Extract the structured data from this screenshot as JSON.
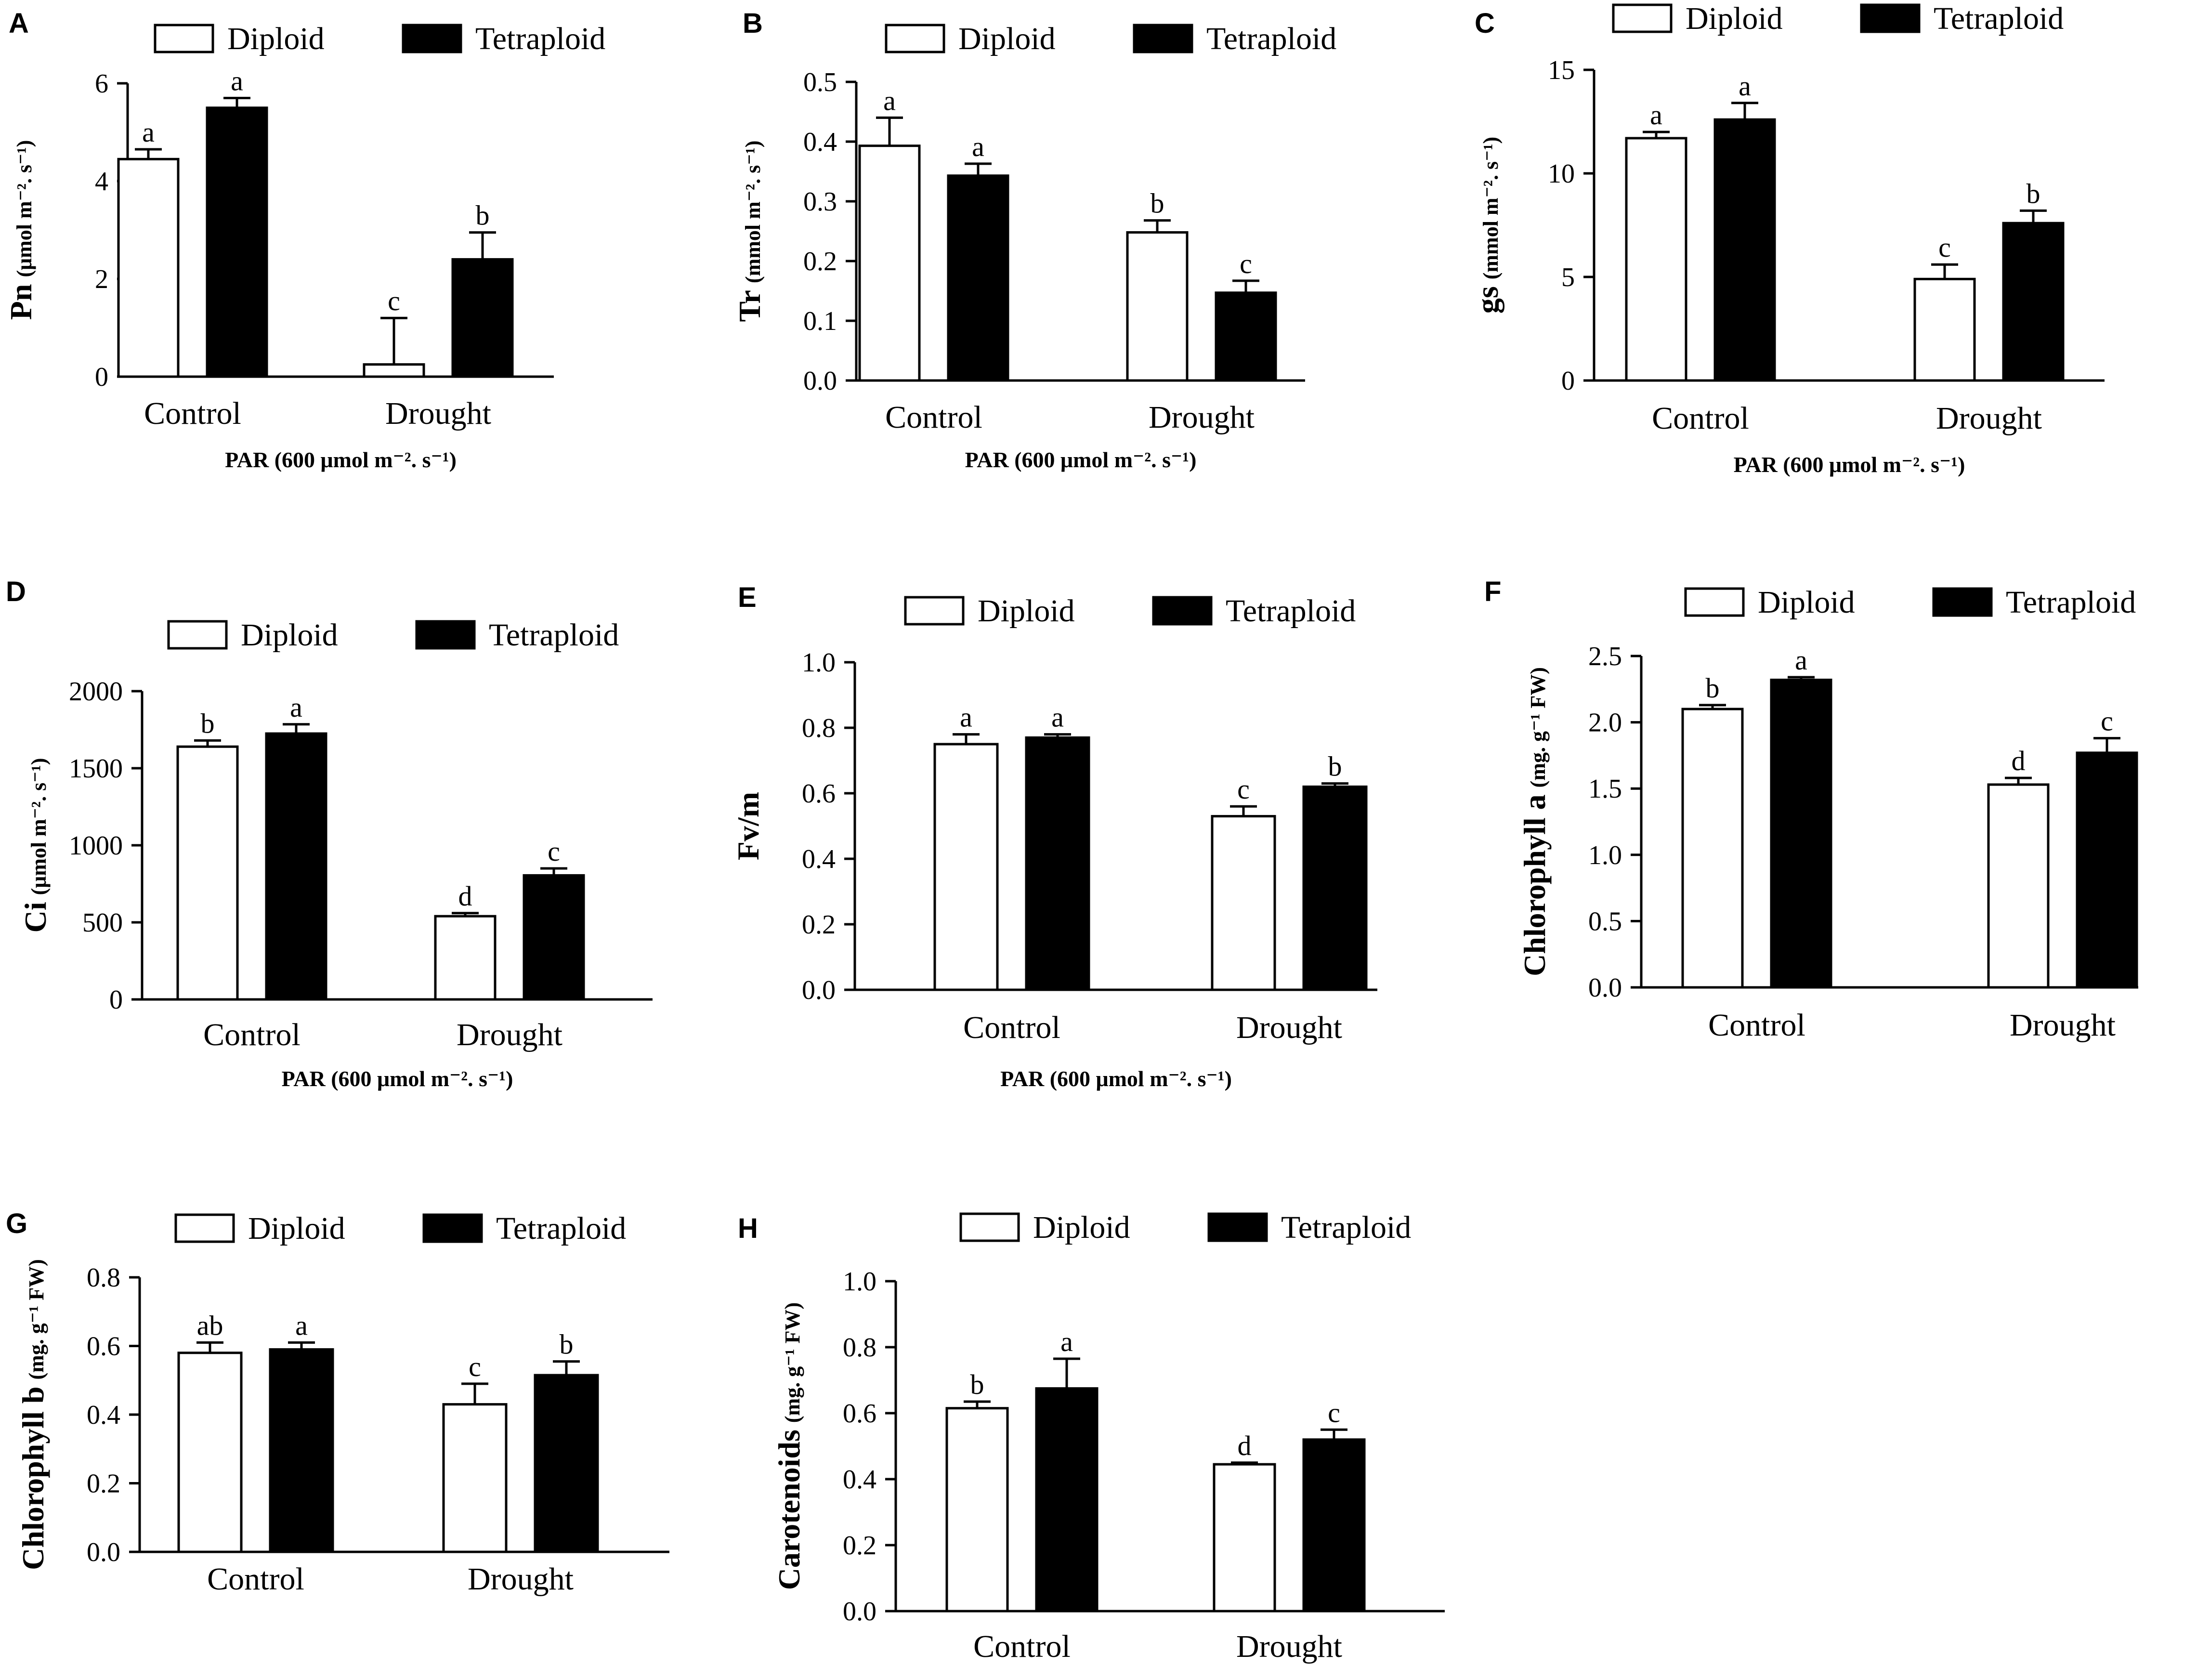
{
  "chart_data": [
    {
      "panel": "A",
      "type": "bar",
      "categories": [
        "Control",
        "Drought"
      ],
      "series": [
        {
          "name": "Diploid",
          "values": [
            4.45,
            0.25
          ],
          "errors": [
            0.2,
            0.95
          ]
        },
        {
          "name": "Tetraploid",
          "values": [
            5.5,
            2.4
          ],
          "errors": [
            0.2,
            0.55
          ]
        }
      ],
      "sig_labels": [
        [
          "a",
          "c"
        ],
        [
          "a",
          "b"
        ]
      ],
      "ylabel": "Pn",
      "ylabel_unit": "(μmol m⁻². s⁻¹)",
      "xlabel": "PAR (600 μmol m⁻². s⁻¹)",
      "ylim": [
        0,
        6
      ],
      "yticks": [
        "0",
        "2",
        "4",
        "6"
      ],
      "legend": [
        "Diploid",
        "Tetraploid"
      ]
    },
    {
      "panel": "B",
      "type": "bar",
      "categories": [
        "Control",
        "Drought"
      ],
      "series": [
        {
          "name": "Diploid",
          "values": [
            0.393,
            0.248
          ],
          "errors": [
            0.047,
            0.02
          ]
        },
        {
          "name": "Tetraploid",
          "values": [
            0.343,
            0.147
          ],
          "errors": [
            0.02,
            0.02
          ]
        }
      ],
      "sig_labels": [
        [
          "a",
          "b"
        ],
        [
          "a",
          "c"
        ]
      ],
      "ylabel": "Tr",
      "ylabel_unit": "(mmol m⁻². s⁻¹)",
      "xlabel": "PAR (600 μmol m⁻². s⁻¹)",
      "ylim": [
        0,
        0.5
      ],
      "yticks": [
        "0.0",
        "0.1",
        "0.2",
        "0.3",
        "0.4",
        "0.5"
      ],
      "legend": [
        "Diploid",
        "Tetraploid"
      ]
    },
    {
      "panel": "C",
      "type": "bar",
      "categories": [
        "Control",
        "Drought"
      ],
      "series": [
        {
          "name": "Diploid",
          "values": [
            11.7,
            4.9
          ],
          "errors": [
            0.3,
            0.7
          ]
        },
        {
          "name": "Tetraploid",
          "values": [
            12.6,
            7.6
          ],
          "errors": [
            0.8,
            0.6
          ]
        }
      ],
      "sig_labels": [
        [
          "a",
          "c"
        ],
        [
          "a",
          "b"
        ]
      ],
      "ylabel": "gs",
      "ylabel_unit": "(mmol m⁻². s⁻¹)",
      "xlabel": "PAR (600 μmol m⁻². s⁻¹)",
      "ylim": [
        0,
        15
      ],
      "yticks": [
        "0",
        "5",
        "10",
        "15"
      ],
      "legend": [
        "Diploid",
        "Tetraploid"
      ]
    },
    {
      "panel": "D",
      "type": "bar",
      "categories": [
        "Control",
        "Drought"
      ],
      "series": [
        {
          "name": "Diploid",
          "values": [
            1640,
            540
          ],
          "errors": [
            40,
            20
          ]
        },
        {
          "name": "Tetraploid",
          "values": [
            1725,
            805
          ],
          "errors": [
            60,
            45
          ]
        }
      ],
      "sig_labels": [
        [
          "b",
          "d"
        ],
        [
          "a",
          "c"
        ]
      ],
      "ylabel": "Ci",
      "ylabel_unit": "(μmol m⁻². s⁻¹)",
      "xlabel": "PAR (600 μmol m⁻². s⁻¹)",
      "ylim": [
        0,
        2000
      ],
      "yticks": [
        "0",
        "500",
        "1000",
        "1500",
        "2000"
      ],
      "legend": [
        "Diploid",
        "Tetraploid"
      ]
    },
    {
      "panel": "E",
      "type": "bar",
      "categories": [
        "Control",
        "Drought"
      ],
      "series": [
        {
          "name": "Diploid",
          "values": [
            0.75,
            0.53
          ],
          "errors": [
            0.03,
            0.03
          ]
        },
        {
          "name": "Tetraploid",
          "values": [
            0.77,
            0.62
          ],
          "errors": [
            0.01,
            0.01
          ]
        }
      ],
      "sig_labels": [
        [
          "a",
          "c"
        ],
        [
          "a",
          "b"
        ]
      ],
      "ylabel": "Fv/m",
      "ylabel_unit": "",
      "xlabel": "PAR (600 μmol m⁻². s⁻¹)",
      "ylim": [
        0,
        1
      ],
      "yticks": [
        "0.0",
        "0.2",
        "0.4",
        "0.6",
        "0.8",
        "1.0"
      ],
      "legend": [
        "Diploid",
        "Tetraploid"
      ]
    },
    {
      "panel": "F",
      "type": "bar",
      "categories": [
        "Control",
        "Drought"
      ],
      "series": [
        {
          "name": "Diploid",
          "values": [
            2.1,
            1.53
          ],
          "errors": [
            0.03,
            0.05
          ]
        },
        {
          "name": "Tetraploid",
          "values": [
            2.32,
            1.77
          ],
          "errors": [
            0.02,
            0.11
          ]
        }
      ],
      "sig_labels": [
        [
          "b",
          "d"
        ],
        [
          "a",
          "c"
        ]
      ],
      "ylabel": "Chlorophyll a",
      "ylabel_unit": "(mg. g⁻¹ FW)",
      "xlabel": "",
      "ylim": [
        0,
        2.5
      ],
      "yticks": [
        "0.0",
        "0.5",
        "1.0",
        "1.5",
        "2.0",
        "2.5"
      ],
      "legend": [
        "Diploid",
        "Tetraploid"
      ]
    },
    {
      "panel": "G",
      "type": "bar",
      "categories": [
        "Control",
        "Drought"
      ],
      "series": [
        {
          "name": "Diploid",
          "values": [
            0.58,
            0.43
          ],
          "errors": [
            0.03,
            0.06
          ]
        },
        {
          "name": "Tetraploid",
          "values": [
            0.59,
            0.515
          ],
          "errors": [
            0.02,
            0.04
          ]
        }
      ],
      "sig_labels": [
        [
          "ab",
          "c"
        ],
        [
          "a",
          "b"
        ]
      ],
      "ylabel": "Chlorophyll b",
      "ylabel_unit": "(mg. g⁻¹ FW)",
      "xlabel": "",
      "ylim": [
        0,
        0.8
      ],
      "yticks": [
        "0.0",
        "0.2",
        "0.4",
        "0.6",
        "0.8"
      ],
      "legend": [
        "Diploid",
        "Tetraploid"
      ]
    },
    {
      "panel": "H",
      "type": "bar",
      "categories": [
        "Control",
        "Drought"
      ],
      "series": [
        {
          "name": "Diploid",
          "values": [
            0.615,
            0.445
          ],
          "errors": [
            0.02,
            0.005
          ]
        },
        {
          "name": "Tetraploid",
          "values": [
            0.675,
            0.52
          ],
          "errors": [
            0.09,
            0.03
          ]
        }
      ],
      "sig_labels": [
        [
          "b",
          "d"
        ],
        [
          "a",
          "c"
        ]
      ],
      "ylabel": "Carotenoids",
      "ylabel_unit": "(mg. g⁻¹ FW)",
      "xlabel": "",
      "ylim": [
        0,
        1
      ],
      "yticks": [
        "0.0",
        "0.2",
        "0.4",
        "0.6",
        "0.8",
        "1.0"
      ],
      "legend": [
        "Diploid",
        "Tetraploid"
      ]
    }
  ]
}
